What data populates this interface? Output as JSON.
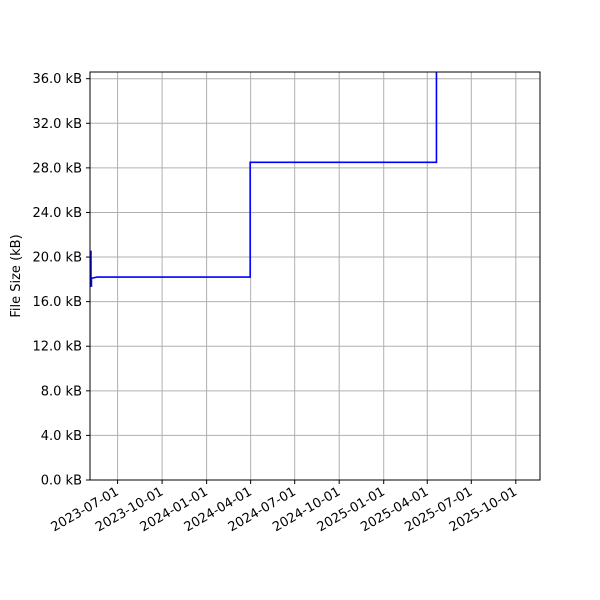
{
  "chart_data": {
    "type": "line",
    "title": "",
    "xlabel": "",
    "ylabel": "File Size (kB)",
    "grid": true,
    "x_tick_labels": [
      "2023-07-01",
      "2023-10-01",
      "2024-01-01",
      "2024-04-01",
      "2024-07-01",
      "2024-10-01",
      "2025-01-01",
      "2025-04-01",
      "2025-07-01",
      "2025-10-01"
    ],
    "y_tick_labels": [
      "0.0 kB",
      "4.0 kB",
      "8.0 kB",
      "12.0 kB",
      "16.0 kB",
      "20.0 kB",
      "24.0 kB",
      "28.0 kB",
      "32.0 kB",
      "36.0 kB"
    ],
    "y_ticks": [
      0,
      4,
      8,
      12,
      16,
      20,
      24,
      28,
      32,
      36
    ],
    "xlim": [
      "2023-05-05",
      "2025-11-20"
    ],
    "ylim": [
      0,
      36.6
    ],
    "series": [
      {
        "color": "#0000ff",
        "points": [
          [
            "2023-05-05",
            20.5
          ],
          [
            "2023-05-07",
            20.5
          ],
          [
            "2023-05-07",
            17.4
          ],
          [
            "2023-05-08",
            17.4
          ],
          [
            "2023-05-08",
            18.1
          ],
          [
            "2023-05-20",
            18.2
          ],
          [
            "2024-03-31",
            18.2
          ],
          [
            "2024-03-31",
            28.5
          ],
          [
            "2025-04-20",
            28.5
          ],
          [
            "2025-04-20",
            36.6
          ],
          [
            "2025-04-20",
            36.6
          ]
        ]
      }
    ]
  }
}
